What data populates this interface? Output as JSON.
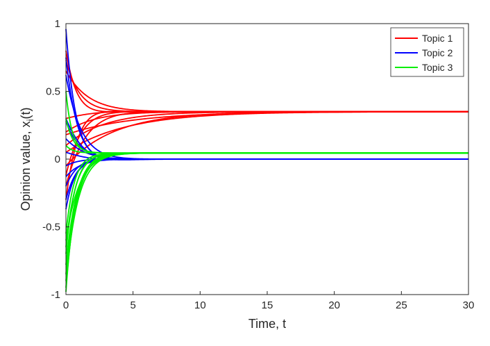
{
  "chart_data": {
    "type": "line",
    "title": "",
    "xlabel": "Time, t",
    "ylabel_main": "Opinion value, x",
    "ylabel_sub": "i",
    "ylabel_tail": "(t)",
    "xlim": [
      0,
      30
    ],
    "ylim": [
      -1,
      1
    ],
    "xticks": [
      0,
      5,
      10,
      15,
      20,
      25,
      30
    ],
    "xtick_labels": [
      "0",
      "5",
      "10",
      "15",
      "20",
      "25",
      "30"
    ],
    "yticks": [
      -1,
      -0.5,
      0,
      0.5,
      1
    ],
    "ytick_labels": [
      "-1",
      "-0.5",
      "0",
      "0.5",
      "1"
    ],
    "grid": false,
    "legend_position": "top-right",
    "series": [
      {
        "name": "Topic 1",
        "color": "#ff0000",
        "final": 0.35,
        "initials": [
          0.8,
          0.73,
          0.65,
          0.3,
          0.18,
          0.05,
          -0.05,
          -0.12,
          -0.2,
          -0.3,
          0.1,
          0.2
        ],
        "rates": [
          1.3,
          1.0,
          0.6,
          0.5,
          0.2,
          0.22,
          0.28,
          0.9,
          0.7,
          1.2,
          0.35,
          0.45
        ],
        "osc": [
          0.5,
          0.0,
          0.1,
          0.4,
          0.0,
          0.0,
          0.0,
          0.3,
          0.2,
          0.5,
          0.0,
          0.1
        ]
      },
      {
        "name": "Topic 2",
        "color": "#0000ff",
        "final": 0.0,
        "initials": [
          0.96,
          0.75,
          0.62,
          0.3,
          0.28,
          0.15,
          -0.05,
          -0.13,
          -0.2,
          -0.3,
          -0.37,
          0.05
        ],
        "rates": [
          1.4,
          1.2,
          0.9,
          0.8,
          1.0,
          0.7,
          1.1,
          0.9,
          1.2,
          1.3,
          1.5,
          0.6
        ],
        "osc": [
          0.3,
          0.4,
          0.2,
          0.5,
          0.2,
          0.3,
          0.4,
          0.2,
          0.5,
          0.4,
          0.3,
          0.6
        ]
      },
      {
        "name": "Topic 3",
        "color": "#00ee00",
        "final": 0.045,
        "initials": [
          0.5,
          0.3,
          -0.55,
          -0.65,
          -0.7,
          -0.78,
          -0.85,
          -0.9,
          -0.95,
          -0.98,
          -0.6,
          0.1
        ],
        "rates": [
          2.2,
          1.8,
          1.6,
          1.4,
          1.5,
          1.2,
          1.3,
          1.1,
          1.25,
          1.35,
          1.0,
          1.9
        ],
        "osc": [
          0.3,
          0.2,
          0.0,
          0.1,
          0.0,
          0.2,
          0.0,
          0.1,
          0.0,
          0.2,
          0.1,
          0.3
        ]
      }
    ]
  }
}
